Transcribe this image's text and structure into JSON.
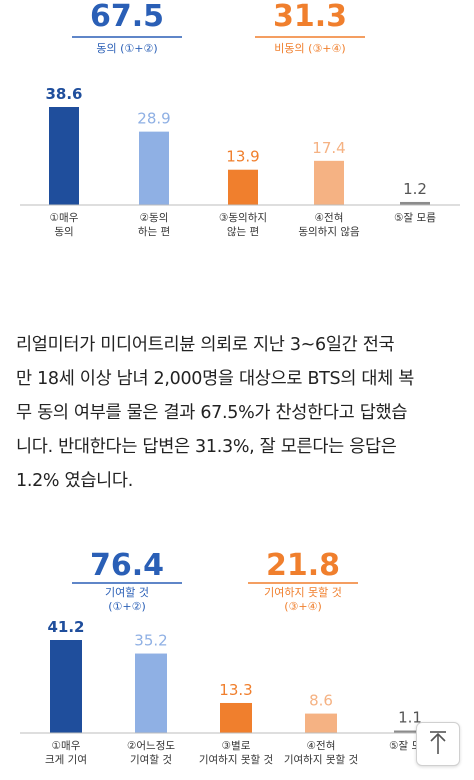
{
  "chart_data": [
    {
      "type": "bar",
      "categories": [
        "①매우\n동의",
        "②동의\n하는 편",
        "③동의하지\n않는 편",
        "④전혀\n동의하지 않음",
        "⑤잘 모름"
      ],
      "values": [
        38.6,
        28.9,
        13.9,
        17.4,
        1.2
      ],
      "colors": [
        "#1f4e9c",
        "#8fb0e4",
        "#f07f2d",
        "#f5b283",
        "#8c8c8c"
      ],
      "value_colors": [
        "#1f4e9c",
        "#8fb0e4",
        "#f07f2d",
        "#f5b283",
        "#555555"
      ],
      "groups": [
        {
          "total": "67.5",
          "label": "동의 (①+②)",
          "color": "#2a5fb6"
        },
        {
          "total": "31.3",
          "label": "비동의 (③+④)",
          "color": "#f07f2d"
        }
      ]
    },
    {
      "type": "bar",
      "categories": [
        "①매우\n크게 기여",
        "②어느정도\n기여할 것",
        "③별로\n기여하지 못할 것",
        "④전혀\n기여하지 못할 것",
        "⑤잘 모름"
      ],
      "values": [
        41.2,
        35.2,
        13.3,
        8.6,
        1.1
      ],
      "value_labels": [
        "41.2",
        "35.2",
        "13.3",
        "8.6",
        "1.1"
      ],
      "colors": [
        "#1f4e9c",
        "#8fb0e4",
        "#f07f2d",
        "#f5b283",
        "#8c8c8c"
      ],
      "value_colors": [
        "#1f4e9c",
        "#8fb0e4",
        "#f07f2d",
        "#f5b283",
        "#555555"
      ],
      "groups": [
        {
          "total": "76.4",
          "label": "기여할 것\n(①+②)",
          "color": "#2a5fb6"
        },
        {
          "total": "21.8",
          "label": "기여하지 못할 것\n(③+④)",
          "color": "#f07f2d"
        }
      ]
    }
  ],
  "article": {
    "lines": [
      "리얼미터가 미디어트리뷴 의뢰로 지난 3~6일간 전국",
      "만 18세 이상 남녀 2,000명을 대상으로 BTS의 대체 복",
      "무 동의 여부를 물은 결과 67.5%가 찬성한다고 답했습",
      "니다. 반대한다는 답변은 31.3%, 잘 모른다는 응답은",
      "1.2% 였습니다."
    ]
  },
  "scroll_top_icon": "arrow-up-icon"
}
